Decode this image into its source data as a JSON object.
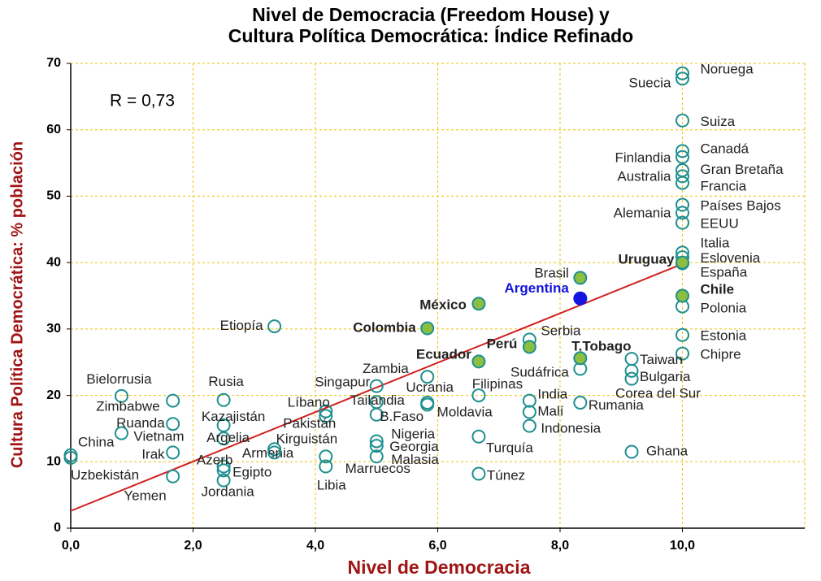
{
  "chart_data": {
    "type": "scatter",
    "title": [
      "Nivel de Democracia (Freedom House) y",
      "Cultura Política Democrática: Índice Refinado"
    ],
    "x_label": "Nivel de Democracia",
    "y_label": "Cultura Política Democrática: % población",
    "annotation": "R = 0,73",
    "xlim": [
      0,
      12
    ],
    "ylim": [
      0,
      70
    ],
    "xticks": [
      {
        "value": 0,
        "label": "0,0"
      },
      {
        "value": 2,
        "label": "2,0"
      },
      {
        "value": 4,
        "label": "4,0"
      },
      {
        "value": 6,
        "label": "6,0"
      },
      {
        "value": 8,
        "label": "8,0"
      },
      {
        "value": 10,
        "label": "10,0"
      }
    ],
    "yticks": [
      0,
      10,
      20,
      30,
      40,
      50,
      60,
      70
    ],
    "grid": true,
    "grid_color": "#f0c000",
    "axis_label_color": "#a01414",
    "trend_line": {
      "x": [
        0,
        10
      ],
      "y": [
        2.6,
        39.8
      ],
      "color": "#d02020"
    },
    "series": [
      {
        "color": "#1f8f8f",
        "filled": false,
        "label_color": "#222222",
        "bold": false,
        "points": [
          {
            "label": "Noruega",
            "x": 10,
            "y": 68.5
          },
          {
            "label": "Suecia",
            "x": 10,
            "y": 67.7
          },
          {
            "label": "Suiza",
            "x": 10,
            "y": 61.4
          },
          {
            "label": "Canadá",
            "x": 10,
            "y": 56.8
          },
          {
            "label": "Finlandia",
            "x": 10,
            "y": 55.9
          },
          {
            "label": "Gran Bretaña",
            "x": 10,
            "y": 53.9
          },
          {
            "label": "Australia",
            "x": 10,
            "y": 53.0
          },
          {
            "label": "Francia",
            "x": 10,
            "y": 52.0
          },
          {
            "label": "Países Bajos",
            "x": 10,
            "y": 48.7
          },
          {
            "label": "Alemania",
            "x": 10,
            "y": 47.5
          },
          {
            "label": "EEUU",
            "x": 10,
            "y": 46.0
          },
          {
            "label": "Italia",
            "x": 10,
            "y": 41.5
          },
          {
            "label": "Eslovenia",
            "x": 10,
            "y": 40.8
          },
          {
            "label": "España",
            "x": 10,
            "y": 39.9
          },
          {
            "label": "Polonia",
            "x": 10,
            "y": 33.4
          },
          {
            "label": "Estonia",
            "x": 10,
            "y": 29.1
          },
          {
            "label": "Chipre",
            "x": 10,
            "y": 26.3
          },
          {
            "label": "Etiopía",
            "x": 3.33,
            "y": 30.4
          },
          {
            "label": "Serbia",
            "x": 7.5,
            "y": 28.4
          },
          {
            "label": "Sudáfrica",
            "x": 8.33,
            "y": 24.0
          },
          {
            "label": "Taiwan",
            "x": 9.17,
            "y": 25.5
          },
          {
            "label": "Bulgaria",
            "x": 9.17,
            "y": 23.7
          },
          {
            "label": "Corea del Sur",
            "x": 9.17,
            "y": 22.5
          },
          {
            "label": "Zambia",
            "x": 5.83,
            "y": 22.8
          },
          {
            "label": "Singapur",
            "x": 5.0,
            "y": 21.4
          },
          {
            "label": "Ucrania",
            "x": 5.83,
            "y": 18.9
          },
          {
            "label": "Tailandia",
            "x": 5.0,
            "y": 19.0
          },
          {
            "label": "Líbano",
            "x": 4.17,
            "y": 17.6
          },
          {
            "label": "B.Faso",
            "x": 5.0,
            "y": 17.1
          },
          {
            "label": "Moldavia",
            "x": 5.83,
            "y": 18.6
          },
          {
            "label": "Filipinas",
            "x": 6.67,
            "y": 20.0
          },
          {
            "label": "India",
            "x": 7.5,
            "y": 19.2
          },
          {
            "label": "Malí",
            "x": 7.5,
            "y": 17.5
          },
          {
            "label": "Indonesia",
            "x": 7.5,
            "y": 15.4
          },
          {
            "label": "Rumania",
            "x": 8.33,
            "y": 18.9
          },
          {
            "label": "Bielorrusia",
            "x": 0.83,
            "y": 19.9
          },
          {
            "label": "Zimbabwe",
            "x": 1.67,
            "y": 19.2
          },
          {
            "label": "Ruanda",
            "x": 1.67,
            "y": 15.7
          },
          {
            "label": "Rusia",
            "x": 2.5,
            "y": 19.3
          },
          {
            "label": "Kazajistán",
            "x": 2.5,
            "y": 15.5
          },
          {
            "label": "Vietnam",
            "x": 0.83,
            "y": 14.3
          },
          {
            "label": "Argelia",
            "x": 2.5,
            "y": 13.5
          },
          {
            "label": "Irak",
            "x": 1.67,
            "y": 11.4
          },
          {
            "label": "China",
            "x": 0,
            "y": 11.0
          },
          {
            "label": "Uzbekistán",
            "x": 0,
            "y": 10.6
          },
          {
            "label": "Yemen",
            "x": 1.67,
            "y": 7.8
          },
          {
            "label": "Azerb",
            "x": 2.5,
            "y": 9.3
          },
          {
            "label": "Egipto",
            "x": 2.5,
            "y": 8.7
          },
          {
            "label": "Jordania",
            "x": 2.5,
            "y": 7.2
          },
          {
            "label": "Armenia",
            "x": 3.33,
            "y": 11.9
          },
          {
            "label": "Kirguistán",
            "x": 3.33,
            "y": 11.4
          },
          {
            "label": "Pakistán",
            "x": 4.17,
            "y": 16.9
          },
          {
            "label": "Marruecos",
            "x": 4.17,
            "y": 10.8
          },
          {
            "label": "Libia",
            "x": 4.17,
            "y": 9.3
          },
          {
            "label": "Nigeria",
            "x": 5.0,
            "y": 13.1
          },
          {
            "label": "Georgia",
            "x": 5.0,
            "y": 12.4
          },
          {
            "label": "Malasia",
            "x": 5.0,
            "y": 10.8
          },
          {
            "label": "Turquía",
            "x": 6.67,
            "y": 13.8
          },
          {
            "label": "Túnez",
            "x": 6.67,
            "y": 8.2
          },
          {
            "label": "Ghana",
            "x": 9.17,
            "y": 11.5
          }
        ]
      },
      {
        "color": "#8cbf3f",
        "filled": true,
        "label_color": "#222222",
        "bold": true,
        "points": [
          {
            "label": "Uruguay",
            "x": 10,
            "y": 40.0
          },
          {
            "label": "Chile",
            "x": 10,
            "y": 35.0
          },
          {
            "label": "México",
            "x": 6.67,
            "y": 33.8
          },
          {
            "label": "Colombia",
            "x": 5.83,
            "y": 30.1
          },
          {
            "label": "Perú",
            "x": 7.5,
            "y": 27.3
          },
          {
            "label": "T.Tobago",
            "x": 8.33,
            "y": 25.6
          },
          {
            "label": "Ecuador",
            "x": 6.67,
            "y": 25.1
          }
        ]
      },
      {
        "color": "#1414e0",
        "filled": true,
        "label_color": "#1414e0",
        "bold": true,
        "points": [
          {
            "label": "Argentina",
            "x": 8.33,
            "y": 34.6
          }
        ]
      },
      {
        "color": "#8cbf3f",
        "filled": true,
        "label_color": "#222222",
        "bold": false,
        "points": [
          {
            "label": "Brasil",
            "x": 8.33,
            "y": 37.7
          }
        ]
      }
    ]
  }
}
